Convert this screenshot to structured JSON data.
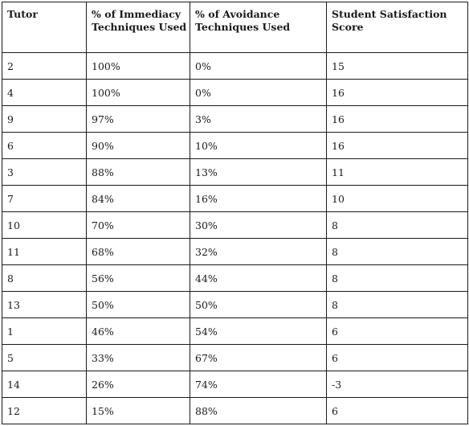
{
  "table": {
    "headers": [
      "Tutor",
      "% of Immediacy Techniques Used",
      "% of Avoidance Techniques Used",
      "Student Satisfaction Score"
    ],
    "rows": [
      [
        "2",
        "100%",
        "0%",
        "15"
      ],
      [
        "4",
        "100%",
        "0%",
        "16"
      ],
      [
        "9",
        "97%",
        "3%",
        "16"
      ],
      [
        "6",
        "90%",
        "10%",
        "16"
      ],
      [
        "3",
        "88%",
        "13%",
        "11"
      ],
      [
        "7",
        "84%",
        "16%",
        "10"
      ],
      [
        "10",
        "70%",
        "30%",
        "8"
      ],
      [
        "11",
        "68%",
        "32%",
        "8"
      ],
      [
        "8",
        "56%",
        "44%",
        "8"
      ],
      [
        "13",
        "50%",
        "50%",
        "8"
      ],
      [
        "1",
        "46%",
        "54%",
        "6"
      ],
      [
        "5",
        "33%",
        "67%",
        "6"
      ],
      [
        "14",
        "26%",
        "74%",
        "-3"
      ],
      [
        "12",
        "15%",
        "88%",
        "6"
      ]
    ]
  }
}
